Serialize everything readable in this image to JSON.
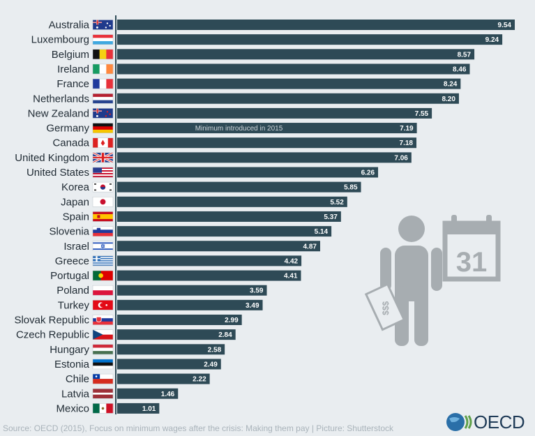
{
  "chart_data": {
    "type": "bar",
    "orientation": "horizontal",
    "categories": [
      "Australia",
      "Luxembourg",
      "Belgium",
      "Ireland",
      "France",
      "Netherlands",
      "New Zealand",
      "Germany",
      "Canada",
      "United Kingdom",
      "United States",
      "Korea",
      "Japan",
      "Spain",
      "Slovenia",
      "Israel",
      "Greece",
      "Portugal",
      "Poland",
      "Turkey",
      "Slovak Republic",
      "Czech Republic",
      "Hungary",
      "Estonia",
      "Chile",
      "Latvia",
      "Mexico"
    ],
    "values": [
      9.54,
      9.24,
      8.57,
      8.46,
      8.24,
      8.2,
      7.55,
      7.19,
      7.18,
      7.06,
      6.26,
      5.85,
      5.52,
      5.37,
      5.14,
      4.87,
      4.42,
      4.41,
      3.59,
      3.49,
      2.99,
      2.84,
      2.58,
      2.49,
      2.22,
      1.46,
      1.01
    ],
    "value_labels": [
      "9.54",
      "9.24",
      "8.57",
      "8.46",
      "8.24",
      "8.20",
      "7.55",
      "7.19",
      "7.18",
      "7.06",
      "6.26",
      "5.85",
      "5.52",
      "5.37",
      "5.14",
      "4.87",
      "4.42",
      "4.41",
      "3.59",
      "3.49",
      "2.99",
      "2.84",
      "2.58",
      "2.49",
      "2.22",
      "1.46",
      "1.01"
    ],
    "xlim": [
      0,
      10
    ],
    "grid": false,
    "bar_color": "#2e4a56",
    "annotations": [
      {
        "category": "Germany",
        "text": "Minimum introduced in 2015"
      }
    ]
  },
  "flag_icons": [
    "australia-flag-icon",
    "luxembourg-flag-icon",
    "belgium-flag-icon",
    "ireland-flag-icon",
    "france-flag-icon",
    "netherlands-flag-icon",
    "new-zealand-flag-icon",
    "germany-flag-icon",
    "canada-flag-icon",
    "united-kingdom-flag-icon",
    "united-states-flag-icon",
    "korea-flag-icon",
    "japan-flag-icon",
    "spain-flag-icon",
    "slovenia-flag-icon",
    "israel-flag-icon",
    "greece-flag-icon",
    "portugal-flag-icon",
    "poland-flag-icon",
    "turkey-flag-icon",
    "slovak-republic-flag-icon",
    "czech-republic-flag-icon",
    "hungary-flag-icon",
    "estonia-flag-icon",
    "chile-flag-icon",
    "latvia-flag-icon",
    "mexico-flag-icon"
  ],
  "illustration": {
    "calendar_day": "31",
    "money_label": "$$$"
  },
  "footer": {
    "source": "Source: OECD (2015), Focus on minimum wages after the crisis: Making them pay | Picture: Shutterstock",
    "logo_text": "OECD"
  },
  "colors": {
    "background": "#e9edf0",
    "bar": "#2e4a56",
    "illustration": "#a7adb1"
  }
}
